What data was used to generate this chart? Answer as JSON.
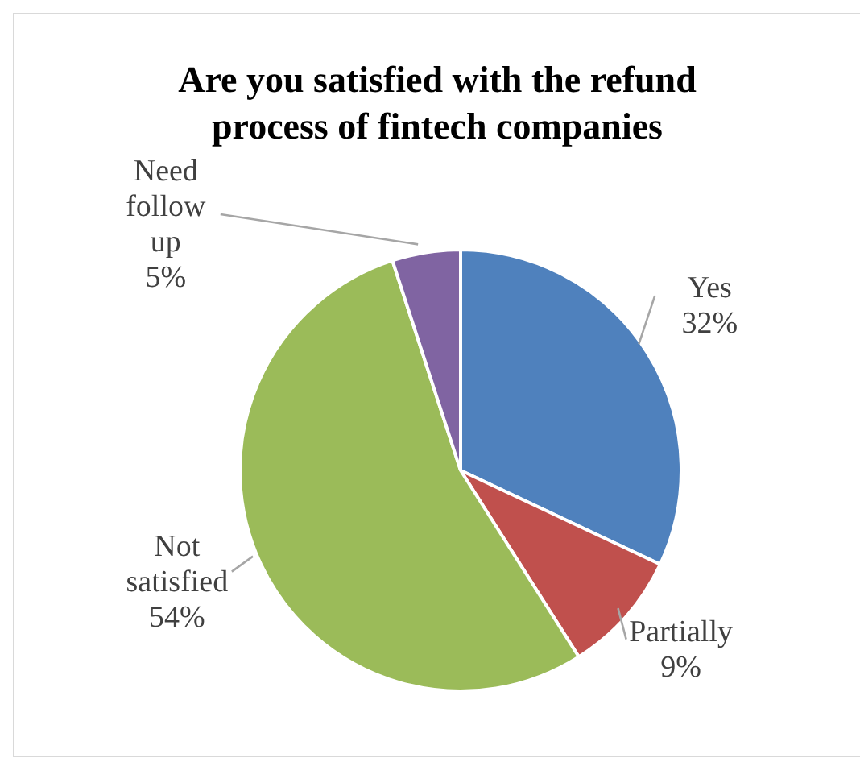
{
  "chart_data": {
    "type": "pie",
    "title": "Are you satisfied with the refund process of fintech companies",
    "categories": [
      "Yes",
      "Partially",
      "Not satisfied",
      "Need follow up"
    ],
    "values": [
      32,
      9,
      54,
      5
    ],
    "colors": [
      "#4f81bd",
      "#c0504d",
      "#9bbb59",
      "#8064a2"
    ],
    "value_labels": [
      "32%",
      "9%",
      "54%",
      "5%"
    ],
    "legend": false
  }
}
